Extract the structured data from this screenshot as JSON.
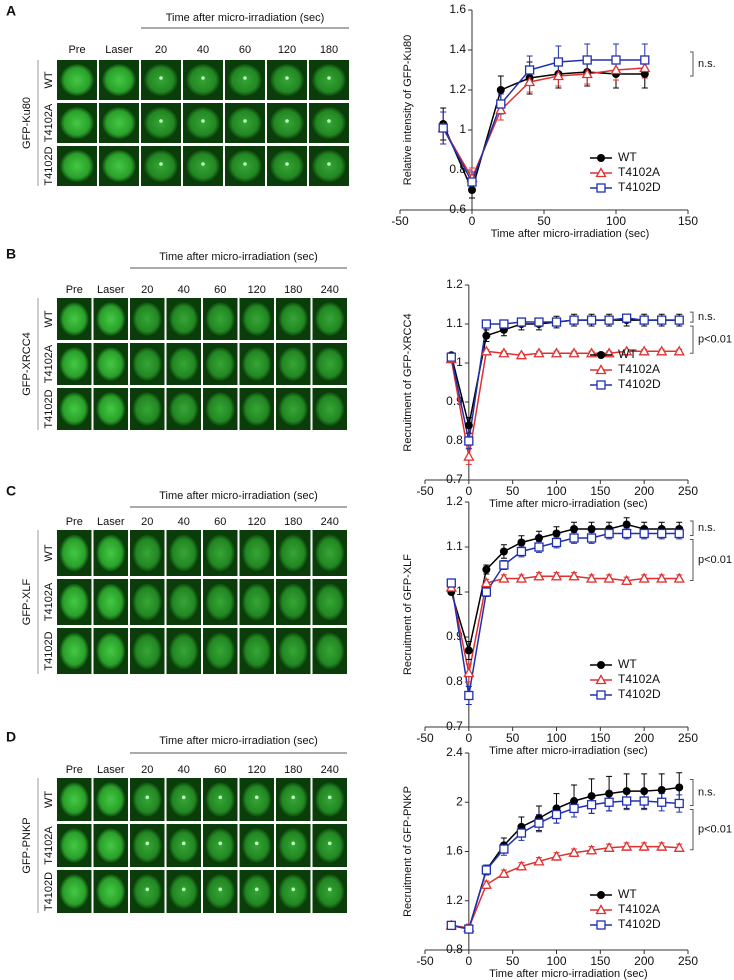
{
  "panels": [
    {
      "label": "A",
      "protein": "GFP-Ku80",
      "header": "Time after micro-irradiation (sec)",
      "columns": [
        "Pre",
        "Laser",
        "20",
        "40",
        "60",
        "120",
        "180"
      ],
      "rows": [
        "WT",
        "T4102A",
        "T4102D"
      ]
    },
    {
      "label": "B",
      "protein": "GFP-XRCC4",
      "header": "Time after micro-irradiation (sec)",
      "columns": [
        "Pre",
        "Laser",
        "20",
        "40",
        "60",
        "120",
        "180",
        "240"
      ],
      "rows": [
        "WT",
        "T4102A",
        "T4102D"
      ]
    },
    {
      "label": "C",
      "protein": "GFP-XLF",
      "header": "Time after micro-irradiation (sec)",
      "columns": [
        "Pre",
        "Laser",
        "20",
        "40",
        "60",
        "120",
        "180",
        "240"
      ],
      "rows": [
        "WT",
        "T4102A",
        "T4102D"
      ]
    },
    {
      "label": "D",
      "protein": "GFP-PNKP",
      "header": "Time after micro-irradiation (sec)",
      "columns": [
        "Pre",
        "Laser",
        "20",
        "40",
        "60",
        "120",
        "180",
        "240"
      ],
      "rows": [
        "WT",
        "T4102A",
        "T4102D"
      ]
    }
  ],
  "chart_data": [
    {
      "type": "line",
      "x_label": "Time after micro-irradiation (sec)",
      "y_label": "Relative intensity  of GFP-Ku80",
      "x": [
        -20,
        0,
        20,
        40,
        60,
        80,
        100,
        120
      ],
      "series": [
        {
          "name": "WT",
          "color": "#000000",
          "marker": "circle",
          "values": [
            1.03,
            0.7,
            1.2,
            1.26,
            1.28,
            1.29,
            1.28,
            1.28
          ],
          "errors": [
            0.08,
            0.04,
            0.07,
            0.08,
            0.07,
            0.07,
            0.07,
            0.07
          ]
        },
        {
          "name": "T4102A",
          "color": "#e03030",
          "marker": "triangle",
          "values": [
            1.01,
            0.76,
            1.1,
            1.24,
            1.27,
            1.28,
            1.3,
            1.31
          ],
          "errors": [
            0.08,
            0.05,
            0.05,
            0.05,
            0.05,
            0.05,
            0.05,
            0.05
          ]
        },
        {
          "name": "T4102D",
          "color": "#2030b0",
          "marker": "square",
          "values": [
            1.01,
            0.74,
            1.13,
            1.3,
            1.34,
            1.35,
            1.35,
            1.35
          ],
          "errors": [
            0.08,
            0.05,
            0.05,
            0.07,
            0.08,
            0.08,
            0.08,
            0.08
          ]
        }
      ],
      "xlim": [
        -50,
        150
      ],
      "xticks": [
        -50,
        0,
        50,
        100,
        150
      ],
      "ylim": [
        0.6,
        1.6
      ],
      "yticks": [
        0.6,
        0.8,
        1,
        1.2,
        1.4,
        1.6
      ],
      "legend": "lower right",
      "annotations": [
        "n.s."
      ]
    },
    {
      "type": "line",
      "x_label": "Time after micro-irradiation (sec)",
      "y_label": "Recruitment of GFP-XRCC4",
      "x": [
        -20,
        0,
        20,
        40,
        60,
        80,
        100,
        120,
        140,
        160,
        180,
        200,
        220,
        240
      ],
      "series": [
        {
          "name": "WT",
          "color": "#000000",
          "marker": "circle",
          "values": [
            1.02,
            0.84,
            1.07,
            1.085,
            1.1,
            1.1,
            1.105,
            1.11,
            1.11,
            1.11,
            1.11,
            1.11,
            1.11,
            1.11
          ],
          "errors": [
            0.005,
            0.02,
            0.015,
            0.015,
            0.015,
            0.015,
            0.015,
            0.015,
            0.015,
            0.015,
            0.015,
            0.015,
            0.015,
            0.015
          ]
        },
        {
          "name": "T4102A",
          "color": "#e03030",
          "marker": "triangle",
          "values": [
            1.01,
            0.76,
            1.03,
            1.025,
            1.02,
            1.025,
            1.025,
            1.025,
            1.025,
            1.025,
            1.03,
            1.03,
            1.03,
            1.03
          ],
          "errors": [
            0.005,
            0.02,
            0.005,
            0.005,
            0.005,
            0.005,
            0.005,
            0.005,
            0.005,
            0.005,
            0.005,
            0.005,
            0.005,
            0.005
          ]
        },
        {
          "name": "T4102D",
          "color": "#2030b0",
          "marker": "square",
          "values": [
            1.015,
            0.8,
            1.1,
            1.1,
            1.105,
            1.105,
            1.105,
            1.11,
            1.11,
            1.11,
            1.115,
            1.11,
            1.11,
            1.11
          ],
          "errors": [
            0.005,
            0.02,
            0.01,
            0.01,
            0.01,
            0.01,
            0.01,
            0.01,
            0.01,
            0.01,
            0.01,
            0.01,
            0.01,
            0.01
          ]
        }
      ],
      "xlim": [
        -50,
        250
      ],
      "xticks": [
        -50,
        0,
        50,
        100,
        150,
        200,
        250
      ],
      "ylim": [
        0.7,
        1.2
      ],
      "yticks": [
        0.7,
        0.8,
        0.9,
        1,
        1.1,
        1.2
      ],
      "legend": "lower right",
      "annotations": [
        "n.s.",
        "p<0.01"
      ]
    },
    {
      "type": "line",
      "x_label": "Time after micro-irradiation (sec)",
      "y_label": "Recruitment of GFP-XLF",
      "x": [
        -20,
        0,
        20,
        40,
        60,
        80,
        100,
        120,
        140,
        160,
        180,
        200,
        220,
        240
      ],
      "series": [
        {
          "name": "WT",
          "color": "#000000",
          "marker": "circle",
          "values": [
            1.0,
            0.87,
            1.05,
            1.09,
            1.11,
            1.12,
            1.13,
            1.14,
            1.14,
            1.14,
            1.15,
            1.14,
            1.14,
            1.14
          ],
          "errors": [
            0.005,
            0.02,
            0.01,
            0.015,
            0.015,
            0.015,
            0.015,
            0.015,
            0.015,
            0.015,
            0.015,
            0.015,
            0.015,
            0.015
          ]
        },
        {
          "name": "T4102A",
          "color": "#e03030",
          "marker": "triangle",
          "values": [
            1.01,
            0.82,
            1.02,
            1.03,
            1.03,
            1.035,
            1.035,
            1.035,
            1.03,
            1.03,
            1.025,
            1.03,
            1.03,
            1.03
          ],
          "errors": [
            0.005,
            0.02,
            0.008,
            0.008,
            0.008,
            0.008,
            0.008,
            0.008,
            0.008,
            0.008,
            0.008,
            0.008,
            0.008,
            0.008
          ]
        },
        {
          "name": "T4102D",
          "color": "#2030b0",
          "marker": "square",
          "values": [
            1.02,
            0.77,
            1.0,
            1.06,
            1.09,
            1.1,
            1.11,
            1.12,
            1.12,
            1.13,
            1.13,
            1.13,
            1.13,
            1.13
          ],
          "errors": [
            0.005,
            0.02,
            0.01,
            0.01,
            0.012,
            0.012,
            0.012,
            0.012,
            0.012,
            0.012,
            0.012,
            0.012,
            0.012,
            0.012
          ]
        }
      ],
      "xlim": [
        -50,
        250
      ],
      "xticks": [
        -50,
        0,
        50,
        100,
        150,
        200,
        250
      ],
      "ylim": [
        0.7,
        1.2
      ],
      "yticks": [
        0.7,
        0.8,
        0.9,
        1,
        1.1,
        1.2
      ],
      "legend": "lower right",
      "annotations": [
        "n.s.",
        "p<0.01"
      ]
    },
    {
      "type": "line",
      "x_label": "Time after micro-irradiation (sec)",
      "y_label": "Recruitment of GFP-PNKP",
      "x": [
        -20,
        0,
        20,
        40,
        60,
        80,
        100,
        120,
        140,
        160,
        180,
        200,
        220,
        240
      ],
      "series": [
        {
          "name": "WT",
          "color": "#000000",
          "marker": "circle",
          "values": [
            1.0,
            0.97,
            1.45,
            1.65,
            1.8,
            1.87,
            1.95,
            2.01,
            2.05,
            2.07,
            2.09,
            2.09,
            2.1,
            2.12
          ],
          "errors": [
            0.02,
            0.03,
            0.04,
            0.06,
            0.08,
            0.1,
            0.12,
            0.13,
            0.14,
            0.14,
            0.14,
            0.14,
            0.13,
            0.12
          ]
        },
        {
          "name": "T4102A",
          "color": "#e03030",
          "marker": "triangle",
          "values": [
            1.0,
            0.98,
            1.33,
            1.42,
            1.48,
            1.52,
            1.56,
            1.59,
            1.61,
            1.63,
            1.64,
            1.64,
            1.64,
            1.63
          ],
          "errors": [
            0.02,
            0.03,
            0.03,
            0.03,
            0.03,
            0.03,
            0.03,
            0.03,
            0.03,
            0.03,
            0.03,
            0.03,
            0.03,
            0.03
          ]
        },
        {
          "name": "T4102D",
          "color": "#2030b0",
          "marker": "square",
          "values": [
            1.0,
            0.97,
            1.45,
            1.62,
            1.75,
            1.83,
            1.9,
            1.95,
            1.98,
            2.0,
            2.01,
            2.01,
            2.0,
            1.99
          ],
          "errors": [
            0.02,
            0.03,
            0.04,
            0.05,
            0.06,
            0.07,
            0.07,
            0.07,
            0.07,
            0.07,
            0.07,
            0.07,
            0.07,
            0.07
          ]
        }
      ],
      "xlim": [
        -50,
        250
      ],
      "xticks": [
        -50,
        0,
        50,
        100,
        150,
        200,
        250
      ],
      "ylim": [
        0.8,
        2.4
      ],
      "yticks": [
        0.8,
        1.2,
        1.6,
        2,
        2.4
      ],
      "legend": "lower right",
      "annotations": [
        "n.s.",
        "p<0.01"
      ]
    }
  ]
}
